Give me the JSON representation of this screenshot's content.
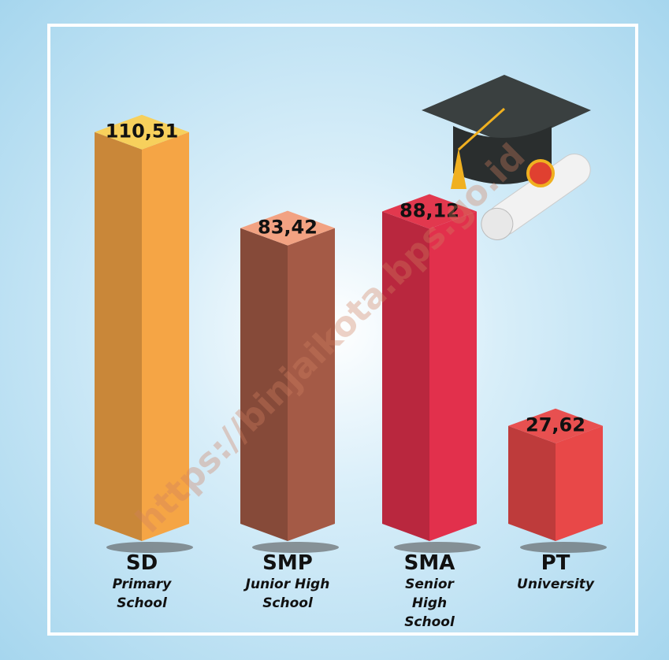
{
  "chart_data": {
    "type": "bar3d",
    "categories": [
      "SD",
      "SMP",
      "SMA",
      "PT"
    ],
    "descriptions": [
      "Primary School",
      "Junior High School",
      "Senior High School",
      "University"
    ],
    "values": [
      110.51,
      83.42,
      88.12,
      27.62
    ],
    "value_labels": [
      "110,51",
      "83,42",
      "88,12",
      "27,62"
    ],
    "colors": [
      "#f5a545",
      "#a45a46",
      "#e2304c",
      "#e84848"
    ],
    "top_colors": [
      "#f7d05c",
      "#f2a282",
      "#e2384e",
      "#e85050"
    ],
    "watermark": "https://binjaikota.bps.go.id"
  }
}
